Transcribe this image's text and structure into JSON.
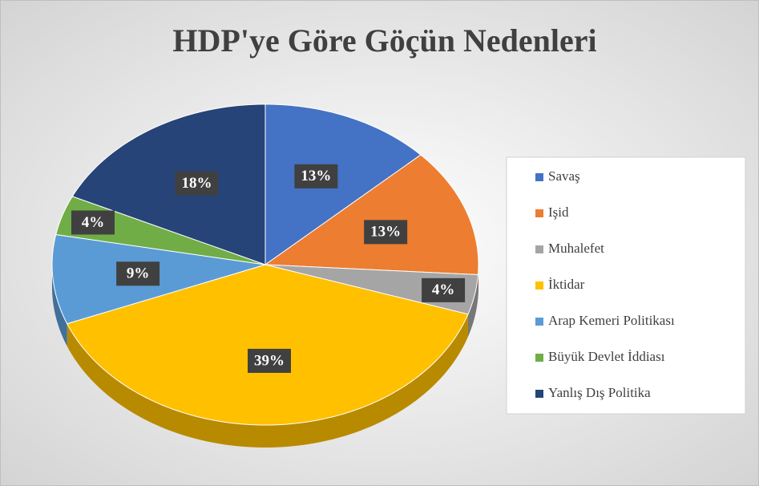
{
  "chart_data": {
    "type": "pie",
    "title": "HDP'ye Göre Göçün Nedenleri",
    "categories": [
      "Savaş",
      "Işid",
      "Muhalefet",
      "İktidar",
      "Arap Kemeri Politikası",
      "Büyük Devlet İddiası",
      "Yanlış Dış Politika"
    ],
    "values": [
      13,
      13,
      4,
      39,
      9,
      4,
      18
    ],
    "value_labels": [
      "13%",
      "13%",
      "4%",
      "39%",
      "9%",
      "4%",
      "18%"
    ],
    "colors": [
      "#4472c4",
      "#ed7d31",
      "#a5a5a5",
      "#ffc000",
      "#5b9bd5",
      "#70ad47",
      "#264478"
    ],
    "legend": "right"
  }
}
